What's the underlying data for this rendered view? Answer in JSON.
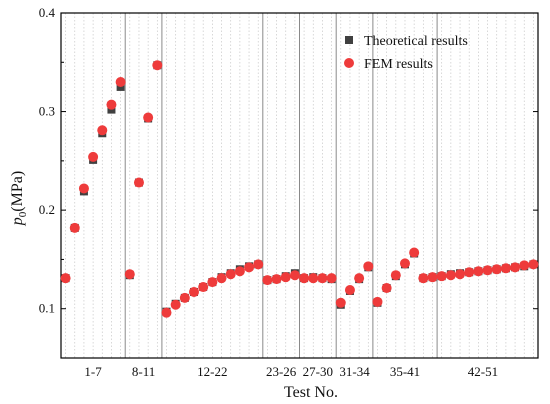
{
  "chart_data": {
    "type": "scatter",
    "xlabel": "Test No.",
    "ylabel_var": "p",
    "ylabel_sub": "0",
    "ylabel_unit": "(MPa)",
    "ylim": [
      0.05,
      0.4
    ],
    "yticks": [
      0.1,
      0.2,
      0.3,
      0.4
    ],
    "xlim": [
      0.5,
      52.5
    ],
    "grid": "vertical dotted at each test",
    "legend_position": "top-right",
    "groups": [
      {
        "label": "1-7",
        "start": 1,
        "end": 7
      },
      {
        "label": "8-11",
        "start": 8,
        "end": 11
      },
      {
        "label": "12-22",
        "start": 12,
        "end": 22
      },
      {
        "label": "23-26",
        "start": 23,
        "end": 26
      },
      {
        "label": "27-30",
        "start": 27,
        "end": 30
      },
      {
        "label": "31-34",
        "start": 31,
        "end": 34
      },
      {
        "label": "35-41",
        "start": 35,
        "end": 41
      },
      {
        "label": "42-51",
        "start": 42,
        "end": 51
      }
    ],
    "x": [
      1,
      2,
      3,
      4,
      5,
      6,
      7,
      8,
      9,
      10,
      11,
      12,
      13,
      14,
      15,
      16,
      17,
      18,
      19,
      20,
      21,
      22,
      23,
      24,
      25,
      26,
      27,
      28,
      29,
      30,
      31,
      32,
      33,
      34,
      35,
      36,
      37,
      38,
      39,
      40,
      41,
      42,
      43,
      44,
      45,
      46,
      47,
      48,
      49,
      50,
      51,
      52
    ],
    "series": [
      {
        "name": "Theoretical results",
        "marker": "square",
        "color": "#404040",
        "values": [
          0.131,
          0.182,
          0.219,
          0.251,
          0.278,
          0.302,
          0.325,
          0.134,
          0.228,
          0.293,
          0.347,
          0.097,
          0.105,
          0.111,
          0.117,
          0.122,
          0.127,
          0.132,
          0.136,
          0.14,
          0.143,
          0.145,
          0.129,
          0.13,
          0.133,
          0.136,
          0.131,
          0.132,
          0.131,
          0.13,
          0.104,
          0.118,
          0.13,
          0.142,
          0.106,
          0.121,
          0.133,
          0.145,
          0.156,
          0.131,
          0.132,
          0.133,
          0.135,
          0.136,
          0.137,
          0.138,
          0.139,
          0.14,
          0.141,
          0.142,
          0.143,
          0.145
        ]
      },
      {
        "name": "FEM results",
        "marker": "circle",
        "color": "#ee3b3b",
        "values": [
          0.131,
          0.182,
          0.222,
          0.254,
          0.281,
          0.307,
          0.33,
          0.135,
          0.228,
          0.294,
          0.347,
          0.096,
          0.104,
          0.111,
          0.117,
          0.122,
          0.127,
          0.131,
          0.135,
          0.138,
          0.142,
          0.145,
          0.129,
          0.13,
          0.132,
          0.134,
          0.131,
          0.131,
          0.131,
          0.131,
          0.106,
          0.119,
          0.131,
          0.143,
          0.107,
          0.121,
          0.134,
          0.146,
          0.157,
          0.131,
          0.132,
          0.133,
          0.134,
          0.135,
          0.137,
          0.138,
          0.139,
          0.14,
          0.141,
          0.142,
          0.144,
          0.145
        ]
      }
    ]
  }
}
